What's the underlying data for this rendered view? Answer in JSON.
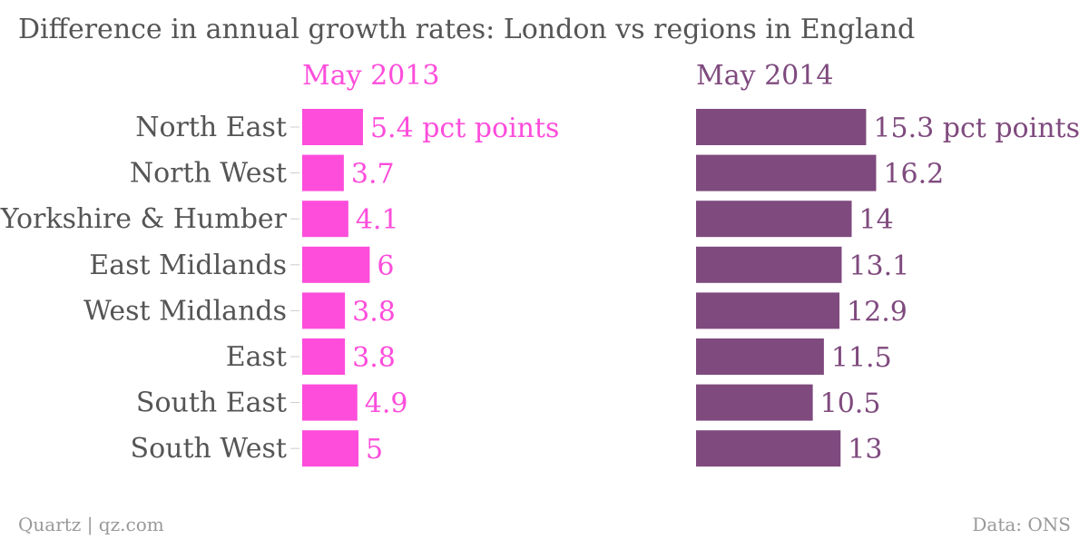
{
  "chart_data": {
    "type": "bar",
    "orientation": "horizontal",
    "title": "Difference in annual growth rates: London vs regions in England",
    "categories": [
      "North East",
      "North West",
      "Yorkshire & Humber",
      "East Midlands",
      "West Midlands",
      "East",
      "South East",
      "South West"
    ],
    "series": [
      {
        "name": "May 2013",
        "color": "#fe4ddb",
        "values": [
          5.4,
          3.7,
          4.1,
          6,
          3.8,
          3.8,
          4.9,
          5
        ],
        "labels": [
          "5.4 pct points",
          "3.7",
          "4.1",
          "6",
          "3.8",
          "3.8",
          "4.9",
          "5"
        ]
      },
      {
        "name": "May 2014",
        "color": "#7f4a7e",
        "values": [
          15.3,
          16.2,
          14,
          13.1,
          12.9,
          11.5,
          10.5,
          13
        ],
        "labels": [
          "15.3 pct points",
          "16.2",
          "14",
          "13.1",
          "12.9",
          "11.5",
          "10.5",
          "13"
        ]
      }
    ],
    "grid": false,
    "legend": "panel headings above each bar group"
  },
  "footer": {
    "credit": "Quartz | qz.com",
    "source": "Data: ONS"
  },
  "colors": {
    "title_text": "#555555",
    "category_text": "#555555",
    "footer_text": "#999999",
    "axis_tick": "#cccccc"
  }
}
